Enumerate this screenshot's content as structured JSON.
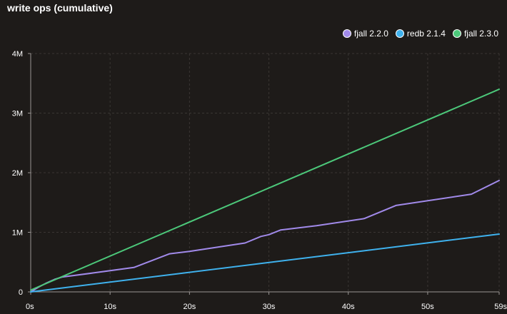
{
  "chart_data": {
    "type": "line",
    "title": "write ops (cumulative)",
    "xlabel": "",
    "ylabel": "",
    "xlim": [
      0,
      59
    ],
    "ylim": [
      0,
      4000000
    ],
    "x_ticks": [
      {
        "value": 0,
        "label": "0s"
      },
      {
        "value": 10,
        "label": "10s"
      },
      {
        "value": 20,
        "label": "20s"
      },
      {
        "value": 30,
        "label": "30s"
      },
      {
        "value": 40,
        "label": "40s"
      },
      {
        "value": 50,
        "label": "50s"
      },
      {
        "value": 59,
        "label": "59s"
      }
    ],
    "y_ticks": [
      {
        "value": 0,
        "label": "0"
      },
      {
        "value": 1000000,
        "label": "1M"
      },
      {
        "value": 2000000,
        "label": "2M"
      },
      {
        "value": 3000000,
        "label": "3M"
      },
      {
        "value": 4000000,
        "label": "4M"
      }
    ],
    "grid": true,
    "legend_position": "top-right",
    "series": [
      {
        "name": "fjall 2.2.0",
        "color": "#a18aea",
        "points": [
          [
            0,
            0
          ],
          [
            1,
            80000
          ],
          [
            2,
            150000
          ],
          [
            3,
            210000
          ],
          [
            4,
            250000
          ],
          [
            8,
            320000
          ],
          [
            13,
            410000
          ],
          [
            17.5,
            640000
          ],
          [
            20,
            680000
          ],
          [
            27,
            820000
          ],
          [
            29,
            930000
          ],
          [
            30,
            960000
          ],
          [
            31.5,
            1040000
          ],
          [
            36,
            1110000
          ],
          [
            42,
            1230000
          ],
          [
            46,
            1450000
          ],
          [
            55.5,
            1640000
          ],
          [
            59,
            1870000
          ]
        ]
      },
      {
        "name": "redb 2.1.4",
        "color": "#3fb2ee",
        "points": [
          [
            0,
            0
          ],
          [
            59,
            970000
          ]
        ]
      },
      {
        "name": "fjall 2.3.0",
        "color": "#4cc87a",
        "points": [
          [
            0,
            30000
          ],
          [
            59,
            3400000
          ]
        ]
      }
    ]
  }
}
